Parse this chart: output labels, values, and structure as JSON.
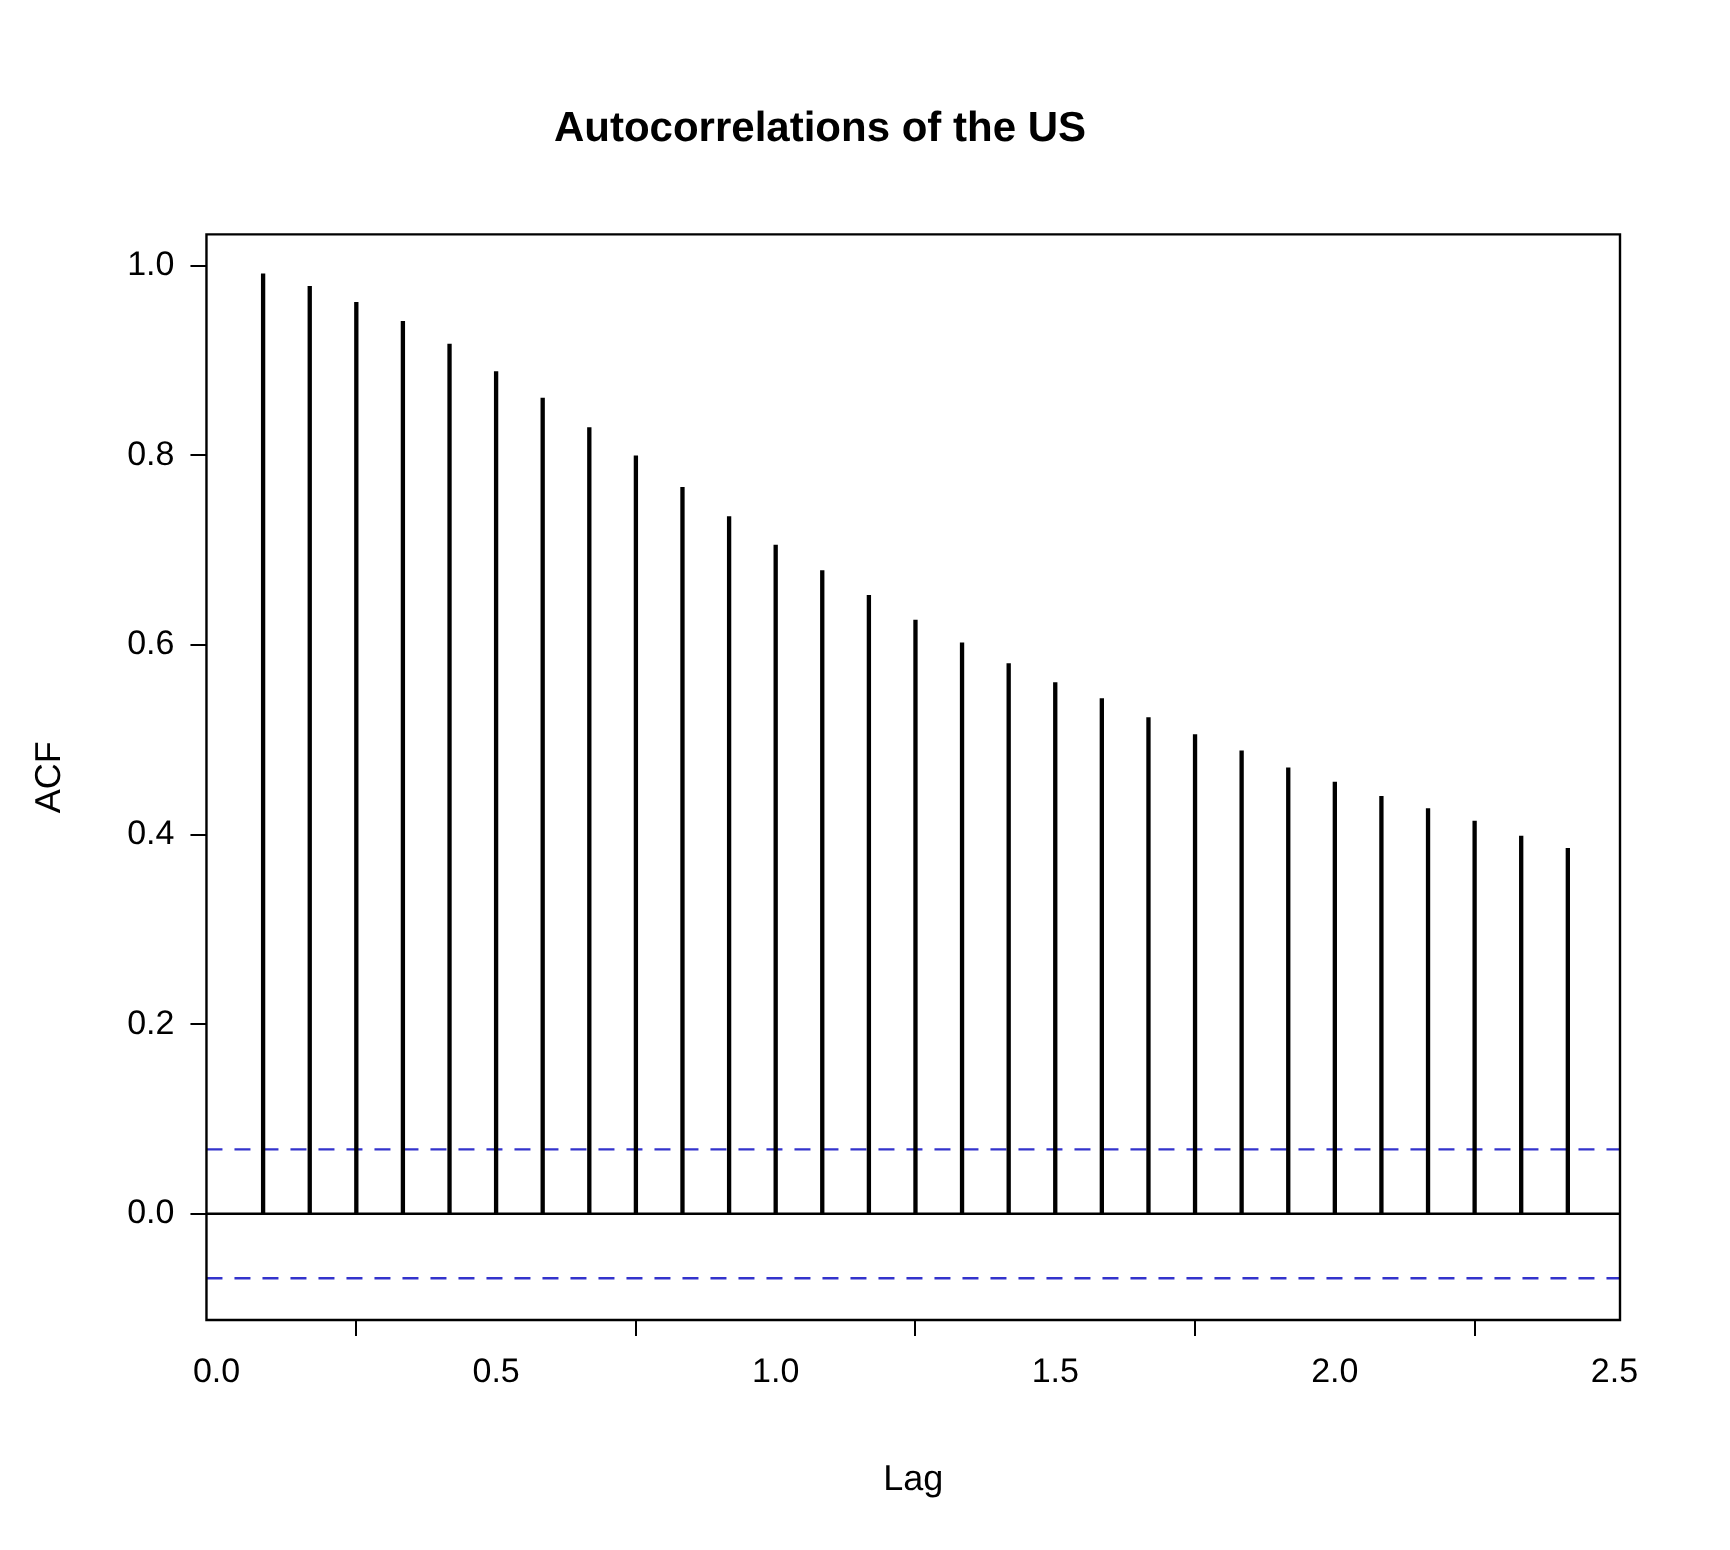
{
  "chart_data": {
    "type": "bar",
    "title": "Autocorrelations of the US",
    "xlabel": "Lag",
    "ylabel": "ACF",
    "x": [
      0.0833,
      0.1667,
      0.25,
      0.3333,
      0.4167,
      0.5,
      0.5833,
      0.6667,
      0.75,
      0.8333,
      0.9167,
      1.0,
      1.0833,
      1.1667,
      1.25,
      1.3333,
      1.4167,
      1.5,
      1.5833,
      1.6667,
      1.75,
      1.8333,
      1.9167,
      2.0,
      2.0833,
      2.1667,
      2.25,
      2.3333,
      2.4167
    ],
    "series": [
      {
        "color": "#000000",
        "values": [
          0.991,
          0.978,
          0.961,
          0.941,
          0.917,
          0.888,
          0.86,
          0.829,
          0.799,
          0.766,
          0.735,
          0.705,
          0.678,
          0.652,
          0.626,
          0.602,
          0.58,
          0.56,
          0.543,
          0.523,
          0.505,
          0.488,
          0.47,
          0.455,
          0.44,
          0.427,
          0.414,
          0.398,
          0.385
        ]
      }
    ],
    "xlim": [
      -0.018,
      2.51
    ],
    "ylim": [
      -0.112,
      1.033
    ],
    "xticks": [
      {
        "value": 0,
        "label": "0.0"
      },
      {
        "value": 0.5,
        "label": "0.5"
      },
      {
        "value": 1,
        "label": "1.0"
      },
      {
        "value": 1.5,
        "label": "1.5"
      },
      {
        "value": 2,
        "label": "2.0"
      },
      {
        "value": 2.5,
        "label": "2.5"
      }
    ],
    "yticks": [
      {
        "value": 0,
        "label": "0.0"
      },
      {
        "value": 0.2,
        "label": "0.2"
      },
      {
        "value": 0.4,
        "label": "0.4"
      },
      {
        "value": 0.6,
        "label": "0.6"
      },
      {
        "value": 0.8,
        "label": "0.8"
      },
      {
        "value": 1,
        "label": "1.0"
      }
    ],
    "ref_lines": [
      {
        "axis": "y",
        "value": 0,
        "color": "#000000",
        "line_style": "solid"
      },
      {
        "axis": "y",
        "value": 0.068,
        "color": "#3333cc",
        "line_style": "dashed"
      },
      {
        "axis": "y",
        "value": -0.068,
        "color": "#3333cc",
        "line_style": "dashed"
      }
    ],
    "grid": false,
    "legend": false
  }
}
